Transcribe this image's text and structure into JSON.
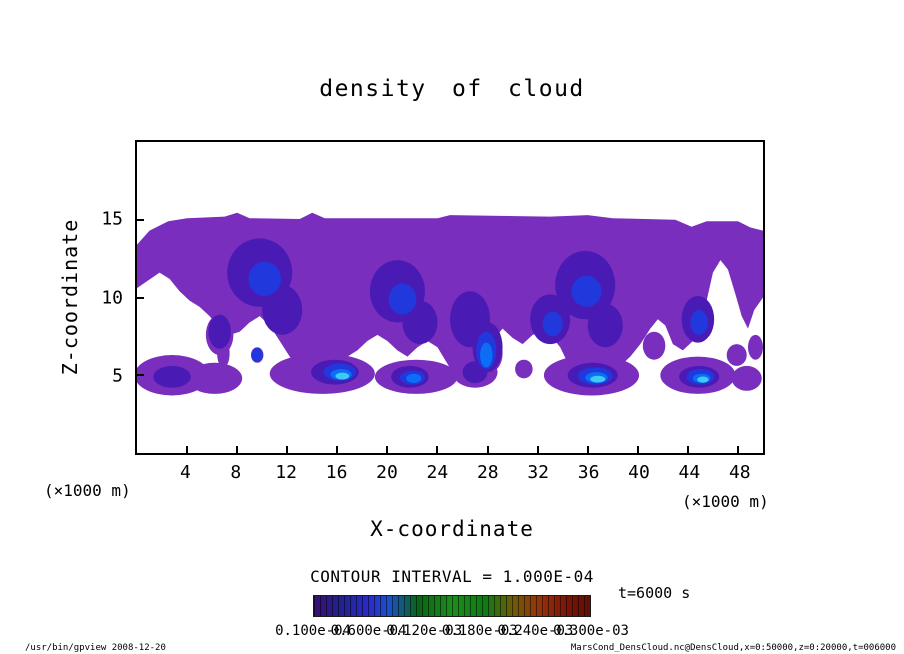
{
  "chart_data": {
    "type": "contour",
    "title": "density of cloud",
    "xlabel": "X-coordinate",
    "ylabel": "Z-coordinate",
    "x_unit_label": "(×1000 m)",
    "y_unit_label": "(×1000 m)",
    "xlim": [
      0,
      50
    ],
    "ylim": [
      0,
      20
    ],
    "x_ticks": [
      4,
      8,
      12,
      16,
      20,
      24,
      28,
      32,
      36,
      40,
      44,
      48
    ],
    "y_ticks": [
      5,
      10,
      15
    ],
    "contour_interval_label": "CONTOUR INTERVAL = 1.000E-04",
    "time_label": "t=6000 s",
    "colorbar": {
      "labels": [
        "0.100e-04",
        "0.600e-04",
        "0.120e-03",
        "0.180e-03",
        "0.240e-03",
        "0.300e-03"
      ],
      "gradient": [
        [
          "#381070",
          0
        ],
        [
          "#22228e",
          10
        ],
        [
          "#2b2bc8",
          20
        ],
        [
          "#1c50c8",
          27
        ],
        [
          "#0a6414",
          38
        ],
        [
          "#1e8c1e",
          50
        ],
        [
          "#0f7a14",
          62
        ],
        [
          "#6e5a0a",
          72
        ],
        [
          "#96320a",
          82
        ],
        [
          "#781408",
          92
        ],
        [
          "#5f1005",
          100
        ]
      ]
    },
    "field": {
      "band_color": "#7a2ebe",
      "band": [
        [
          0,
          13.4
        ],
        [
          1,
          14.3
        ],
        [
          2.5,
          14.9
        ],
        [
          4,
          15.1
        ],
        [
          7,
          15.2
        ],
        [
          8,
          15.45
        ],
        [
          9,
          15.1
        ],
        [
          13,
          15.05
        ],
        [
          14,
          15.45
        ],
        [
          15,
          15.1
        ],
        [
          24,
          15.1
        ],
        [
          25,
          15.3
        ],
        [
          33,
          15.2
        ],
        [
          36,
          15.3
        ],
        [
          38,
          15.1
        ],
        [
          43,
          15.0
        ],
        [
          44.3,
          14.55
        ],
        [
          45.5,
          14.9
        ],
        [
          48,
          14.9
        ],
        [
          49,
          14.5
        ],
        [
          50,
          14.3
        ],
        [
          50,
          10.0
        ],
        [
          49.3,
          9.2
        ],
        [
          48.8,
          8.0
        ],
        [
          48.3,
          8.8
        ],
        [
          47.8,
          10.2
        ],
        [
          47.2,
          11.8
        ],
        [
          46.6,
          12.4
        ],
        [
          46.0,
          11.6
        ],
        [
          45.5,
          9.8
        ],
        [
          45.0,
          8.2
        ],
        [
          44.4,
          7.2
        ],
        [
          43.6,
          6.6
        ],
        [
          42.8,
          7.0
        ],
        [
          42.2,
          8.2
        ],
        [
          41.6,
          8.6
        ],
        [
          41.0,
          8.0
        ],
        [
          40.2,
          7.0
        ],
        [
          39.4,
          6.2
        ],
        [
          38.6,
          5.6
        ],
        [
          37.6,
          5.0
        ],
        [
          36.4,
          4.6
        ],
        [
          35.2,
          5.0
        ],
        [
          34.4,
          5.8
        ],
        [
          33.8,
          6.8
        ],
        [
          33.2,
          7.4
        ],
        [
          32.4,
          7.8
        ],
        [
          31.6,
          7.6
        ],
        [
          30.8,
          7.0
        ],
        [
          30.0,
          7.4
        ],
        [
          29.2,
          8.0
        ],
        [
          28.4,
          7.2
        ],
        [
          27.6,
          6.0
        ],
        [
          26.8,
          5.2
        ],
        [
          26.0,
          4.8
        ],
        [
          25.2,
          5.2
        ],
        [
          24.6,
          6.0
        ],
        [
          24.0,
          6.8
        ],
        [
          23.2,
          7.2
        ],
        [
          22.4,
          6.8
        ],
        [
          21.6,
          6.2
        ],
        [
          20.8,
          6.6
        ],
        [
          20.0,
          7.2
        ],
        [
          19.2,
          7.6
        ],
        [
          18.4,
          7.2
        ],
        [
          17.6,
          6.6
        ],
        [
          16.8,
          6.2
        ],
        [
          16.0,
          5.8
        ],
        [
          15.0,
          5.4
        ],
        [
          14.0,
          5.0
        ],
        [
          13.0,
          5.4
        ],
        [
          12.2,
          6.2
        ],
        [
          11.4,
          7.2
        ],
        [
          10.6,
          8.2
        ],
        [
          9.8,
          8.8
        ],
        [
          9.0,
          8.4
        ],
        [
          8.2,
          7.8
        ],
        [
          7.4,
          7.6
        ],
        [
          6.6,
          8.0
        ],
        [
          5.8,
          8.8
        ],
        [
          5.0,
          9.4
        ],
        [
          4.2,
          9.8
        ],
        [
          3.4,
          10.4
        ],
        [
          2.6,
          11.2
        ],
        [
          1.8,
          11.6
        ],
        [
          0.9,
          11.1
        ],
        [
          0,
          10.6
        ]
      ],
      "holes": [
        [
          4.3,
          7.0,
          1.0,
          1.1
        ],
        [
          9.3,
          5.9,
          0.8,
          0.6
        ]
      ],
      "islands": [
        [
          6.9,
          6.4,
          0.5,
          0.9
        ],
        [
          6.6,
          7.6,
          1.1,
          1.3
        ],
        [
          9.6,
          6.3,
          0.5,
          0.5
        ],
        [
          28.2,
          6.4,
          1.0,
          1.2
        ],
        [
          30.9,
          5.4,
          0.7,
          0.6
        ],
        [
          41.3,
          6.9,
          0.9,
          0.9
        ],
        [
          47.9,
          6.3,
          0.8,
          0.7
        ],
        [
          49.4,
          6.8,
          0.6,
          0.8
        ]
      ],
      "surface": [
        [
          2.8,
          5.0,
          3.0,
          1.3
        ],
        [
          6.2,
          4.8,
          2.2,
          1.0
        ],
        [
          14.8,
          5.1,
          4.2,
          1.3
        ],
        [
          22.3,
          4.9,
          3.3,
          1.1
        ],
        [
          27.0,
          5.2,
          1.8,
          1.0
        ],
        [
          36.3,
          5.0,
          3.8,
          1.3
        ],
        [
          44.8,
          5.0,
          3.0,
          1.2
        ],
        [
          48.7,
          4.8,
          1.2,
          0.8
        ]
      ],
      "levels": [
        {
          "name": "level-2",
          "color": "#4a1bb4",
          "blobs": [
            [
              9.8,
              11.6,
              2.6,
              2.2
            ],
            [
              11.6,
              9.2,
              1.6,
              1.6
            ],
            [
              20.8,
              10.4,
              2.2,
              2.0
            ],
            [
              22.6,
              8.4,
              1.4,
              1.4
            ],
            [
              26.6,
              8.6,
              1.6,
              1.8
            ],
            [
              28.0,
              6.8,
              1.2,
              1.6
            ],
            [
              33.0,
              8.6,
              1.6,
              1.6
            ],
            [
              35.8,
              10.8,
              2.4,
              2.2
            ],
            [
              37.4,
              8.2,
              1.4,
              1.4
            ],
            [
              44.8,
              8.6,
              1.3,
              1.5
            ],
            [
              6.6,
              7.8,
              0.9,
              1.1
            ],
            [
              2.8,
              4.9,
              1.5,
              0.7
            ],
            [
              15.8,
              5.2,
              1.9,
              0.8
            ],
            [
              21.8,
              4.9,
              1.5,
              0.7
            ],
            [
              36.4,
              5.0,
              2.0,
              0.8
            ],
            [
              44.9,
              4.9,
              1.6,
              0.7
            ],
            [
              27.0,
              5.2,
              1.0,
              0.7
            ]
          ]
        },
        {
          "name": "level-3",
          "color": "#2038dc",
          "blobs": [
            [
              10.2,
              11.2,
              1.3,
              1.1
            ],
            [
              21.2,
              9.9,
              1.1,
              1.0
            ],
            [
              27.9,
              6.6,
              0.8,
              1.2
            ],
            [
              35.9,
              10.4,
              1.2,
              1.0
            ],
            [
              33.2,
              8.3,
              0.8,
              0.8
            ],
            [
              44.9,
              8.4,
              0.7,
              0.8
            ],
            [
              9.6,
              6.3,
              0.45,
              0.45
            ],
            [
              16.2,
              5.2,
              1.3,
              0.55
            ],
            [
              22.0,
              4.85,
              1.0,
              0.45
            ],
            [
              36.6,
              4.95,
              1.4,
              0.55
            ],
            [
              45.0,
              4.9,
              1.1,
              0.5
            ]
          ]
        },
        {
          "name": "level-4",
          "color": "#0b6ef5",
          "blobs": [
            [
              27.9,
              6.3,
              0.5,
              0.8
            ],
            [
              16.3,
              5.05,
              0.85,
              0.35
            ],
            [
              36.7,
              4.85,
              0.9,
              0.35
            ],
            [
              45.1,
              4.8,
              0.7,
              0.3
            ],
            [
              22.1,
              4.8,
              0.6,
              0.3
            ]
          ]
        },
        {
          "name": "level-5",
          "color": "#41c8f5",
          "blobs": [
            [
              16.4,
              4.95,
              0.55,
              0.22
            ],
            [
              36.8,
              4.75,
              0.6,
              0.22
            ],
            [
              45.2,
              4.72,
              0.45,
              0.2
            ]
          ]
        }
      ]
    }
  },
  "footer": {
    "left": "/usr/bin/gpview  2008-12-20",
    "right": "MarsCond_DensCloud.nc@DensCloud,x=0:50000,z=0:20000,t=006000"
  }
}
